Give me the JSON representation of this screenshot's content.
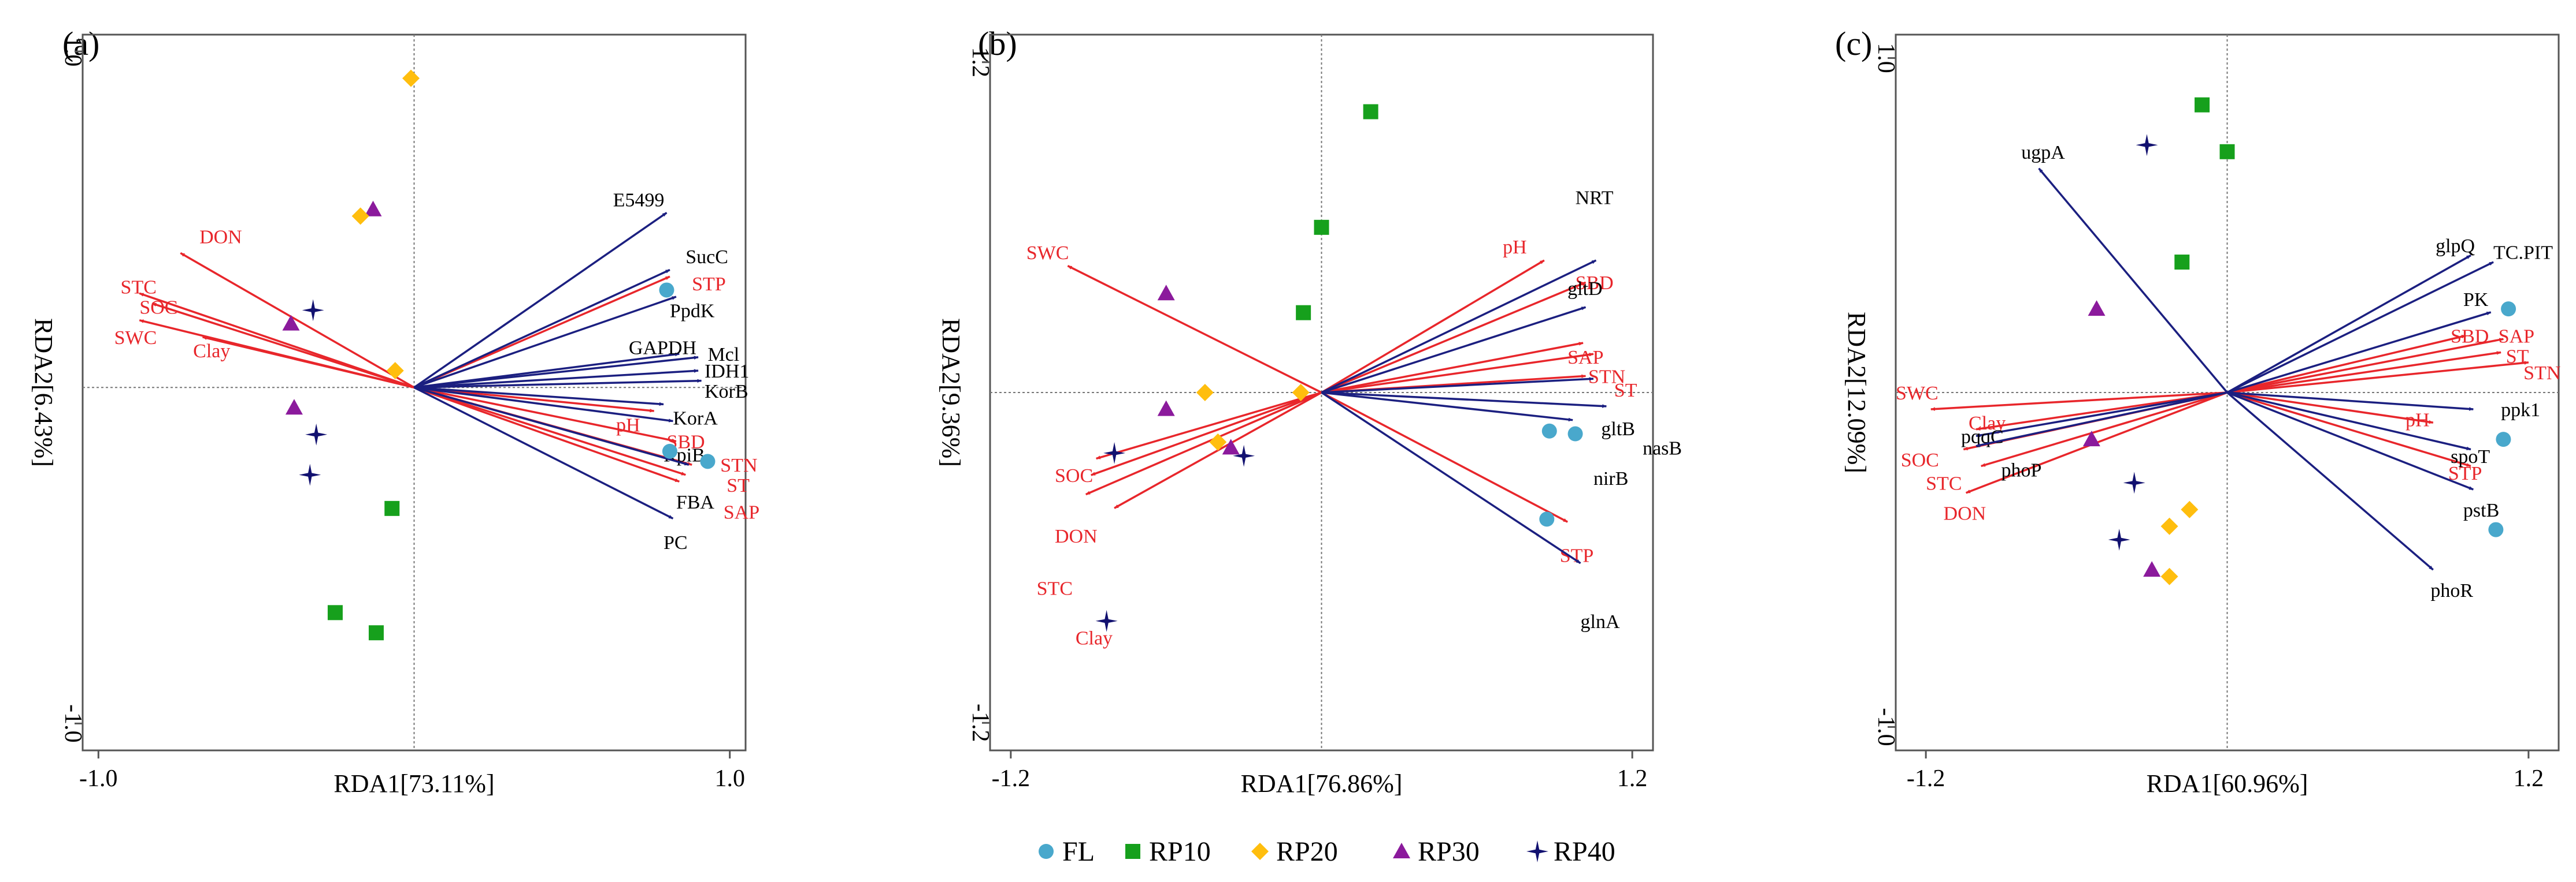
{
  "colors": {
    "env_arrow": "#e8262b",
    "gene_arrow": "#1b1f80",
    "FL": "#49a8cc",
    "RP10": "#16a01c",
    "RP20": "#ffbe0e",
    "RP30": "#8b1a9c",
    "RP40": "#121170"
  },
  "legend": [
    {
      "key": "FL",
      "label": "FL",
      "shape": "circle"
    },
    {
      "key": "RP10",
      "label": "RP10",
      "shape": "square"
    },
    {
      "key": "RP20",
      "label": "RP20",
      "shape": "diamond"
    },
    {
      "key": "RP30",
      "label": "RP30",
      "shape": "triangle"
    },
    {
      "key": "RP40",
      "label": "RP40",
      "shape": "star"
    }
  ],
  "chart_data": [
    {
      "type": "scatter",
      "panel": "(a)",
      "xlabel": "RDA1[73.11%]",
      "ylabel": "RDA2[6.43%]",
      "xlim": [
        -1.05,
        1.05
      ],
      "ylim": [
        -1.08,
        1.05
      ],
      "xticks": [
        {
          "v": -1.0,
          "label": "-1.0"
        },
        {
          "v": 1.0,
          "label": "1.0"
        }
      ],
      "yticks": [
        {
          "v": -1.0,
          "label": "-1.0"
        },
        {
          "v": 1.0,
          "label": "1.0"
        }
      ],
      "env_arrows": [
        {
          "label": "DON",
          "x": -0.74,
          "y": 0.4,
          "lx": -0.68,
          "ly": 0.45
        },
        {
          "label": "STC",
          "x": -0.87,
          "y": 0.28,
          "lx": -0.93,
          "ly": 0.3
        },
        {
          "label": "SOC",
          "x": -0.83,
          "y": 0.25,
          "lx": -0.87,
          "ly": 0.24
        },
        {
          "label": "SWC",
          "x": -0.87,
          "y": 0.2,
          "lx": -0.95,
          "ly": 0.15
        },
        {
          "label": "Clay",
          "x": -0.67,
          "y": 0.15,
          "lx": -0.7,
          "ly": 0.11
        },
        {
          "label": "STP",
          "x": 0.81,
          "y": 0.33,
          "lx": 0.88,
          "ly": 0.31
        },
        {
          "label": "pH",
          "x": 0.76,
          "y": -0.07,
          "lx": 0.64,
          "ly": -0.11
        },
        {
          "label": "SBD",
          "x": 0.83,
          "y": -0.16,
          "lx": 0.8,
          "ly": -0.16
        },
        {
          "label": "STN",
          "x": 0.88,
          "y": -0.23,
          "lx": 0.97,
          "ly": -0.23
        },
        {
          "label": "ST",
          "x": 0.86,
          "y": -0.26,
          "lx": 0.99,
          "ly": -0.29
        },
        {
          "label": "SAP",
          "x": 0.84,
          "y": -0.28,
          "lx": 0.98,
          "ly": -0.37
        }
      ],
      "gene_arrows": [
        {
          "label": "E5499",
          "x": 0.8,
          "y": 0.52,
          "lx": 0.63,
          "ly": 0.56
        },
        {
          "label": "SucC",
          "x": 0.81,
          "y": 0.35,
          "lx": 0.86,
          "ly": 0.39
        },
        {
          "label": "PpdK",
          "x": 0.83,
          "y": 0.27,
          "lx": 0.81,
          "ly": 0.23
        },
        {
          "label": "GAPDH",
          "x": 0.84,
          "y": 0.1,
          "lx": 0.68,
          "ly": 0.12
        },
        {
          "label": "Mcl",
          "x": 0.9,
          "y": 0.09,
          "lx": 0.93,
          "ly": 0.1
        },
        {
          "label": "IDH1",
          "x": 0.9,
          "y": 0.05,
          "lx": 0.92,
          "ly": 0.05
        },
        {
          "label": "KorB",
          "x": 0.91,
          "y": 0.02,
          "lx": 0.92,
          "ly": -0.01
        },
        {
          "label": "KorA",
          "x": 0.79,
          "y": -0.05,
          "lx": 0.82,
          "ly": -0.09
        },
        {
          "label": "RpiB",
          "x": 0.82,
          "y": -0.1,
          "lx": 0.79,
          "ly": -0.2
        },
        {
          "label": "FBA",
          "x": 0.87,
          "y": -0.23,
          "lx": 0.83,
          "ly": -0.34
        },
        {
          "label": "PC",
          "x": 0.82,
          "y": -0.39,
          "lx": 0.79,
          "ly": -0.46
        }
      ],
      "points": [
        {
          "g": "RP20",
          "x": -0.01,
          "y": 0.92
        },
        {
          "g": "RP30",
          "x": -0.13,
          "y": 0.53
        },
        {
          "g": "RP20",
          "x": -0.17,
          "y": 0.51
        },
        {
          "g": "RP40",
          "x": -0.32,
          "y": 0.23
        },
        {
          "g": "RP30",
          "x": -0.39,
          "y": 0.19
        },
        {
          "g": "RP20",
          "x": -0.06,
          "y": 0.05
        },
        {
          "g": "RP30",
          "x": -0.38,
          "y": -0.06
        },
        {
          "g": "RP40",
          "x": -0.31,
          "y": -0.14
        },
        {
          "g": "RP40",
          "x": -0.33,
          "y": -0.26
        },
        {
          "g": "FL",
          "x": 0.8,
          "y": 0.29
        },
        {
          "g": "FL",
          "x": 0.81,
          "y": -0.19
        },
        {
          "g": "FL",
          "x": 0.93,
          "y": -0.22
        },
        {
          "g": "RP10",
          "x": -0.07,
          "y": -0.36
        },
        {
          "g": "RP10",
          "x": -0.25,
          "y": -0.67
        },
        {
          "g": "RP10",
          "x": -0.12,
          "y": -0.73
        }
      ]
    },
    {
      "type": "scatter",
      "panel": "(b)",
      "xlabel": "RDA1[76.86%]",
      "ylabel": "RDA2[9.36%]",
      "xlim": [
        -1.28,
        1.28
      ],
      "ylim": [
        -1.3,
        1.3
      ],
      "xticks": [
        {
          "v": -1.2,
          "label": "-1.2"
        },
        {
          "v": 1.2,
          "label": "1.2"
        }
      ],
      "yticks": [
        {
          "v": -1.2,
          "label": "-1.2"
        },
        {
          "v": 1.2,
          "label": "1.2"
        }
      ],
      "env_arrows": [
        {
          "label": "pH",
          "x": 0.86,
          "y": 0.48,
          "lx": 0.7,
          "ly": 0.53
        },
        {
          "label": "SBD",
          "x": 1.02,
          "y": 0.4,
          "lx": 0.98,
          "ly": 0.4
        },
        {
          "label": "SAP",
          "x": 1.01,
          "y": 0.18,
          "lx": 0.95,
          "ly": 0.13
        },
        {
          "label": "STN",
          "x": 1.05,
          "y": 0.14,
          "lx": 1.03,
          "ly": 0.06
        },
        {
          "label": "ST",
          "x": 1.02,
          "y": 0.06,
          "lx": 1.13,
          "ly": 0.01
        },
        {
          "label": "STP",
          "x": 0.95,
          "y": -0.47,
          "lx": 0.92,
          "ly": -0.59
        },
        {
          "label": "SWC",
          "x": -0.98,
          "y": 0.46,
          "lx": -1.14,
          "ly": 0.51
        },
        {
          "label": "SOC",
          "x": -0.87,
          "y": -0.24,
          "lx": -1.03,
          "ly": -0.3
        },
        {
          "label": "DON",
          "x": -0.89,
          "y": -0.3,
          "lx": -1.03,
          "ly": -0.52
        },
        {
          "label": "STC",
          "x": -0.91,
          "y": -0.37,
          "lx": -1.1,
          "ly": -0.71
        },
        {
          "label": "Clay",
          "x": -0.8,
          "y": -0.42,
          "lx": -0.95,
          "ly": -0.89
        }
      ],
      "gene_arrows": [
        {
          "label": "NRT",
          "x": 1.06,
          "y": 0.48,
          "lx": 0.98,
          "ly": 0.71
        },
        {
          "label": "gltD",
          "x": 1.02,
          "y": 0.31,
          "lx": 0.95,
          "ly": 0.38
        },
        {
          "label": "gltB",
          "x": 1.05,
          "y": 0.05,
          "lx": 1.08,
          "ly": -0.13
        },
        {
          "label": "nasB",
          "x": 1.1,
          "y": -0.05,
          "lx": 1.24,
          "ly": -0.2
        },
        {
          "label": "nirB",
          "x": 0.97,
          "y": -0.1,
          "lx": 1.05,
          "ly": -0.31
        },
        {
          "label": "glnA",
          "x": 1.0,
          "y": -0.62,
          "lx": 1.0,
          "ly": -0.83
        }
      ],
      "points": [
        {
          "g": "RP10",
          "x": 0.19,
          "y": 1.02
        },
        {
          "g": "RP10",
          "x": 0.0,
          "y": 0.6
        },
        {
          "g": "RP10",
          "x": -0.07,
          "y": 0.29
        },
        {
          "g": "RP30",
          "x": -0.6,
          "y": 0.36
        },
        {
          "g": "RP30",
          "x": -0.6,
          "y": -0.06
        },
        {
          "g": "RP20",
          "x": -0.45,
          "y": 0.0
        },
        {
          "g": "RP20",
          "x": -0.08,
          "y": 0.0
        },
        {
          "g": "RP20",
          "x": -0.4,
          "y": -0.18
        },
        {
          "g": "RP30",
          "x": -0.35,
          "y": -0.2
        },
        {
          "g": "RP40",
          "x": -0.3,
          "y": -0.23
        },
        {
          "g": "RP40",
          "x": -0.8,
          "y": -0.22
        },
        {
          "g": "RP40",
          "x": -0.83,
          "y": -0.83
        },
        {
          "g": "FL",
          "x": 0.88,
          "y": -0.14
        },
        {
          "g": "FL",
          "x": 0.98,
          "y": -0.15
        },
        {
          "g": "FL",
          "x": 0.87,
          "y": -0.46
        }
      ]
    },
    {
      "type": "scatter",
      "panel": "(c)",
      "xlabel": "RDA1[60.96%]",
      "ylabel": "RDA2[12.09%]",
      "xlim": [
        -1.32,
        1.32
      ],
      "ylim": [
        -1.07,
        1.07
      ],
      "xticks": [
        {
          "v": -1.2,
          "label": "-1.2"
        },
        {
          "v": 1.2,
          "label": "1.2"
        }
      ],
      "yticks": [
        {
          "v": -1.0,
          "label": "-1.0"
        },
        {
          "v": 1.0,
          "label": "1.0"
        }
      ],
      "env_arrows": [
        {
          "label": "SBD",
          "x": 0.95,
          "y": 0.17,
          "lx": 0.89,
          "ly": 0.17
        },
        {
          "label": "SAP",
          "x": 1.1,
          "y": 0.16,
          "lx": 1.08,
          "ly": 0.17
        },
        {
          "label": "ST",
          "x": 1.09,
          "y": 0.12,
          "lx": 1.11,
          "ly": 0.11
        },
        {
          "label": "STN",
          "x": 1.2,
          "y": 0.09,
          "lx": 1.18,
          "ly": 0.06
        },
        {
          "label": "pH",
          "x": 0.82,
          "y": -0.09,
          "lx": 0.71,
          "ly": -0.08
        },
        {
          "label": "STP",
          "x": 0.97,
          "y": -0.22,
          "lx": 0.88,
          "ly": -0.24
        },
        {
          "label": "SWC",
          "x": -1.18,
          "y": -0.05,
          "lx": -1.32,
          "ly": 0.0
        },
        {
          "label": "Clay",
          "x": -1.0,
          "y": -0.11,
          "lx": -1.03,
          "ly": -0.09
        },
        {
          "label": "SOC",
          "x": -1.05,
          "y": -0.17,
          "lx": -1.3,
          "ly": -0.2
        },
        {
          "label": "STC",
          "x": -0.98,
          "y": -0.22,
          "lx": -1.2,
          "ly": -0.27
        },
        {
          "label": "DON",
          "x": -1.04,
          "y": -0.3,
          "lx": -1.13,
          "ly": -0.36
        }
      ],
      "gene_arrows": [
        {
          "label": "ugpA",
          "x": -0.75,
          "y": 0.67,
          "lx": -0.82,
          "ly": 0.72
        },
        {
          "label": "glpQ",
          "x": 0.97,
          "y": 0.41,
          "lx": 0.83,
          "ly": 0.44
        },
        {
          "label": "TC.PIT",
          "x": 1.06,
          "y": 0.39,
          "lx": 1.06,
          "ly": 0.42
        },
        {
          "label": "PK",
          "x": 1.05,
          "y": 0.24,
          "lx": 0.94,
          "ly": 0.28
        },
        {
          "label": "ppk1",
          "x": 0.98,
          "y": -0.05,
          "lx": 1.09,
          "ly": -0.05
        },
        {
          "label": "spoT",
          "x": 0.97,
          "y": -0.17,
          "lx": 0.89,
          "ly": -0.19
        },
        {
          "label": "pstB",
          "x": 0.98,
          "y": -0.29,
          "lx": 0.94,
          "ly": -0.35
        },
        {
          "label": "phoR",
          "x": 0.82,
          "y": -0.53,
          "lx": 0.81,
          "ly": -0.59
        },
        {
          "label": "pqqC",
          "x": -1.0,
          "y": -0.13,
          "lx": -1.06,
          "ly": -0.13
        },
        {
          "label": "phoP",
          "x": -1.0,
          "y": -0.16,
          "lx": -0.9,
          "ly": -0.23
        }
      ],
      "points": [
        {
          "g": "RP10",
          "x": -0.1,
          "y": 0.86
        },
        {
          "g": "RP10",
          "x": 0.0,
          "y": 0.72
        },
        {
          "g": "RP10",
          "x": -0.18,
          "y": 0.39
        },
        {
          "g": "RP40",
          "x": -0.32,
          "y": 0.74
        },
        {
          "g": "RP30",
          "x": -0.52,
          "y": 0.25
        },
        {
          "g": "RP30",
          "x": -0.54,
          "y": -0.14
        },
        {
          "g": "RP40",
          "x": -0.37,
          "y": -0.27
        },
        {
          "g": "RP40",
          "x": -0.43,
          "y": -0.44
        },
        {
          "g": "RP20",
          "x": -0.15,
          "y": -0.35
        },
        {
          "g": "RP20",
          "x": -0.23,
          "y": -0.4
        },
        {
          "g": "RP20",
          "x": -0.23,
          "y": -0.55
        },
        {
          "g": "RP30",
          "x": -0.3,
          "y": -0.53
        },
        {
          "g": "FL",
          "x": 1.12,
          "y": 0.25
        },
        {
          "g": "FL",
          "x": 1.1,
          "y": -0.14
        },
        {
          "g": "FL",
          "x": 1.07,
          "y": -0.41
        }
      ]
    }
  ]
}
